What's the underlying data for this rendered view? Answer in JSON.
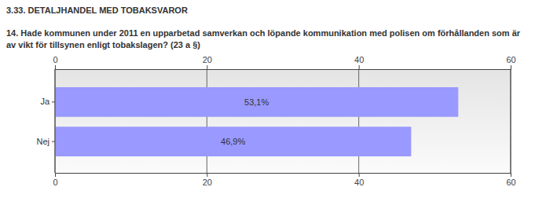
{
  "chart_data": {
    "type": "bar",
    "orientation": "horizontal",
    "title": "3.33. DETALJHANDEL MED TOBAKSVAROR",
    "subtitle": "14. Hade kommunen under 2011 en upparbetad samverkan och löpande kommunikation med polisen om förhållanden som är av vikt för tillsynen enligt tobakslagen? (23 a §)",
    "categories": [
      "Ja",
      "Nej"
    ],
    "values": [
      53.1,
      46.9
    ],
    "value_labels": [
      "53,1%",
      "46,9%"
    ],
    "data_labels": true,
    "color": "#9999ff",
    "xlim": [
      0,
      60
    ],
    "xticks": [
      0,
      20,
      40,
      60
    ],
    "grid": true
  }
}
